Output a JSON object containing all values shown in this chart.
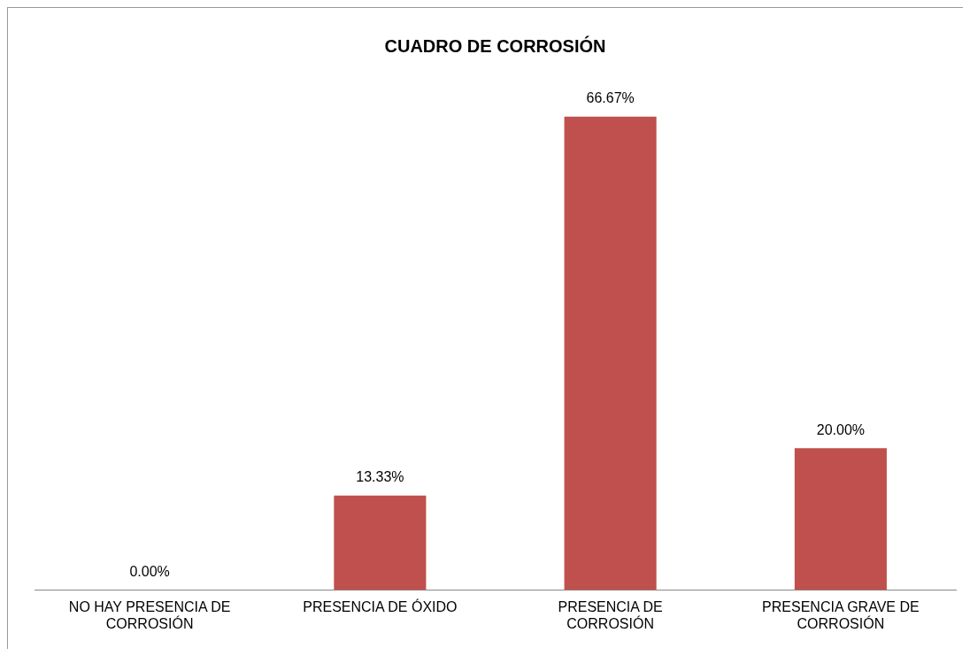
{
  "chart_data": {
    "type": "bar",
    "title": "CUADRO DE CORROSIÓN",
    "categories": [
      "NO HAY PRESENCIA DE CORROSIÓN",
      "PRESENCIA DE ÓXIDO",
      "PRESENCIA DE CORROSIÓN",
      "PRESENCIA GRAVE DE CORROSIÓN"
    ],
    "values": [
      0,
      13.33,
      66.67,
      20
    ],
    "value_labels": [
      "0.00%",
      "13.33%",
      "66.67%",
      "20.00%"
    ],
    "color": "#c0504d",
    "grid": false,
    "legend": false
  }
}
